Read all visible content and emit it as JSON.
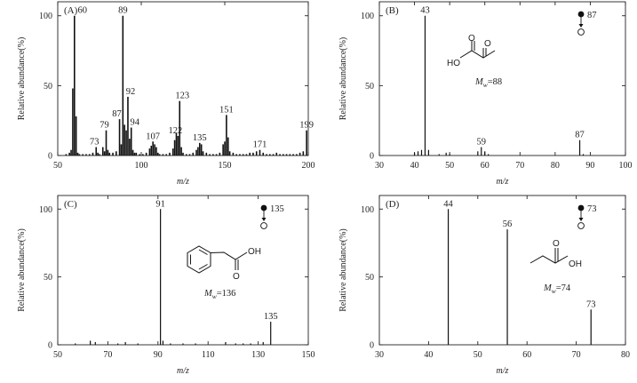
{
  "chart_data": [
    {
      "type": "bar",
      "panel": "(A)",
      "xlabel": "m/z",
      "ylabel": "Relative abundance(%)",
      "xlim": [
        50,
        200
      ],
      "ylim": [
        0,
        110
      ],
      "xticks": [
        50,
        100,
        150,
        200
      ],
      "yticks": [
        0,
        50,
        100
      ],
      "peaks": [
        {
          "x": 55,
          "y": 1
        },
        {
          "x": 57,
          "y": 2
        },
        {
          "x": 58,
          "y": 4
        },
        {
          "x": 59,
          "y": 48
        },
        {
          "x": 60,
          "y": 100,
          "label": "60"
        },
        {
          "x": 61,
          "y": 28
        },
        {
          "x": 62,
          "y": 2
        },
        {
          "x": 63,
          "y": 1
        },
        {
          "x": 65,
          "y": 1
        },
        {
          "x": 67,
          "y": 1
        },
        {
          "x": 69,
          "y": 1
        },
        {
          "x": 71,
          "y": 2
        },
        {
          "x": 73,
          "y": 6,
          "label": "73"
        },
        {
          "x": 74,
          "y": 2
        },
        {
          "x": 75,
          "y": 1
        },
        {
          "x": 77,
          "y": 6
        },
        {
          "x": 78,
          "y": 3
        },
        {
          "x": 79,
          "y": 18,
          "label": "79"
        },
        {
          "x": 80,
          "y": 4
        },
        {
          "x": 81,
          "y": 2
        },
        {
          "x": 83,
          "y": 2
        },
        {
          "x": 85,
          "y": 3
        },
        {
          "x": 87,
          "y": 26,
          "label": "87"
        },
        {
          "x": 88,
          "y": 8
        },
        {
          "x": 89,
          "y": 100,
          "label": "89"
        },
        {
          "x": 90,
          "y": 22
        },
        {
          "x": 91,
          "y": 18
        },
        {
          "x": 92,
          "y": 42,
          "label": "92"
        },
        {
          "x": 93,
          "y": 12
        },
        {
          "x": 94,
          "y": 20,
          "label": "94"
        },
        {
          "x": 95,
          "y": 4
        },
        {
          "x": 96,
          "y": 2
        },
        {
          "x": 97,
          "y": 2
        },
        {
          "x": 99,
          "y": 1
        },
        {
          "x": 101,
          "y": 1
        },
        {
          "x": 103,
          "y": 2
        },
        {
          "x": 105,
          "y": 5
        },
        {
          "x": 106,
          "y": 7
        },
        {
          "x": 107,
          "y": 10,
          "label": "107"
        },
        {
          "x": 108,
          "y": 8
        },
        {
          "x": 109,
          "y": 6
        },
        {
          "x": 110,
          "y": 2
        },
        {
          "x": 111,
          "y": 1
        },
        {
          "x": 113,
          "y": 1
        },
        {
          "x": 115,
          "y": 1
        },
        {
          "x": 117,
          "y": 2
        },
        {
          "x": 119,
          "y": 5
        },
        {
          "x": 120,
          "y": 11
        },
        {
          "x": 121,
          "y": 16
        },
        {
          "x": 122,
          "y": 14,
          "label": "122"
        },
        {
          "x": 123,
          "y": 39,
          "label": "123"
        },
        {
          "x": 124,
          "y": 6
        },
        {
          "x": 125,
          "y": 2
        },
        {
          "x": 127,
          "y": 1
        },
        {
          "x": 129,
          "y": 1
        },
        {
          "x": 131,
          "y": 2
        },
        {
          "x": 133,
          "y": 4
        },
        {
          "x": 134,
          "y": 6
        },
        {
          "x": 135,
          "y": 9,
          "label": "135"
        },
        {
          "x": 136,
          "y": 8
        },
        {
          "x": 137,
          "y": 3
        },
        {
          "x": 139,
          "y": 2
        },
        {
          "x": 141,
          "y": 1
        },
        {
          "x": 143,
          "y": 1
        },
        {
          "x": 145,
          "y": 1
        },
        {
          "x": 147,
          "y": 2
        },
        {
          "x": 149,
          "y": 8
        },
        {
          "x": 150,
          "y": 10
        },
        {
          "x": 151,
          "y": 29,
          "label": "151"
        },
        {
          "x": 152,
          "y": 13
        },
        {
          "x": 153,
          "y": 3
        },
        {
          "x": 155,
          "y": 2
        },
        {
          "x": 157,
          "y": 1
        },
        {
          "x": 159,
          "y": 1
        },
        {
          "x": 161,
          "y": 1
        },
        {
          "x": 163,
          "y": 1
        },
        {
          "x": 165,
          "y": 2
        },
        {
          "x": 167,
          "y": 2
        },
        {
          "x": 169,
          "y": 3
        },
        {
          "x": 171,
          "y": 4,
          "label": "171"
        },
        {
          "x": 173,
          "y": 2
        },
        {
          "x": 175,
          "y": 1
        },
        {
          "x": 177,
          "y": 1
        },
        {
          "x": 179,
          "y": 1
        },
        {
          "x": 181,
          "y": 2
        },
        {
          "x": 183,
          "y": 1
        },
        {
          "x": 185,
          "y": 1
        },
        {
          "x": 187,
          "y": 1
        },
        {
          "x": 189,
          "y": 1
        },
        {
          "x": 191,
          "y": 1
        },
        {
          "x": 193,
          "y": 1
        },
        {
          "x": 195,
          "y": 2
        },
        {
          "x": 197,
          "y": 3
        },
        {
          "x": 199,
          "y": 18,
          "label": "199"
        }
      ]
    },
    {
      "type": "bar",
      "panel": "(B)",
      "xlabel": "m/z",
      "ylabel": "Relative abundance(%)",
      "xlim": [
        30,
        100
      ],
      "ylim": [
        0,
        110
      ],
      "xticks": [
        30,
        40,
        50,
        60,
        70,
        80,
        90,
        100
      ],
      "yticks": [
        0,
        50,
        100
      ],
      "mw": "88",
      "molecular_ion": "87",
      "peaks": [
        {
          "x": 40,
          "y": 2
        },
        {
          "x": 41,
          "y": 3
        },
        {
          "x": 42,
          "y": 4
        },
        {
          "x": 43,
          "y": 100,
          "label": "43"
        },
        {
          "x": 44,
          "y": 4
        },
        {
          "x": 47,
          "y": 1
        },
        {
          "x": 49,
          "y": 2
        },
        {
          "x": 50,
          "y": 1
        },
        {
          "x": 58,
          "y": 3
        },
        {
          "x": 59,
          "y": 6,
          "label": "59"
        },
        {
          "x": 60,
          "y": 3
        },
        {
          "x": 61,
          "y": 1
        },
        {
          "x": 87,
          "y": 11,
          "label": "87"
        },
        {
          "x": 88,
          "y": 1
        }
      ]
    },
    {
      "type": "bar",
      "panel": "(C)",
      "xlabel": "m/z",
      "ylabel": "Relative abundance(%)",
      "xlim": [
        50,
        150
      ],
      "ylim": [
        0,
        110
      ],
      "xticks": [
        50,
        70,
        90,
        110,
        130,
        150
      ],
      "yticks": [
        0,
        50,
        100
      ],
      "mw": "136",
      "molecular_ion": "135",
      "peaks": [
        {
          "x": 57,
          "y": 1
        },
        {
          "x": 63,
          "y": 3
        },
        {
          "x": 65,
          "y": 2
        },
        {
          "x": 74,
          "y": 1
        },
        {
          "x": 77,
          "y": 2
        },
        {
          "x": 82,
          "y": 1
        },
        {
          "x": 91,
          "y": 100,
          "label": "91"
        },
        {
          "x": 92,
          "y": 3
        },
        {
          "x": 95,
          "y": 1
        },
        {
          "x": 100,
          "y": 1
        },
        {
          "x": 105,
          "y": 1
        },
        {
          "x": 117,
          "y": 2
        },
        {
          "x": 121,
          "y": 1
        },
        {
          "x": 124,
          "y": 1
        },
        {
          "x": 127,
          "y": 1
        },
        {
          "x": 132,
          "y": 2
        },
        {
          "x": 135,
          "y": 17,
          "label": "135"
        }
      ]
    },
    {
      "type": "bar",
      "panel": "(D)",
      "xlabel": "m/z",
      "ylabel": "Relative abundance(%)",
      "xlim": [
        30,
        80
      ],
      "ylim": [
        0,
        110
      ],
      "xticks": [
        30,
        40,
        50,
        60,
        70,
        80
      ],
      "yticks": [
        0,
        50,
        100
      ],
      "mw": "74",
      "molecular_ion": "73",
      "peaks": [
        {
          "x": 44,
          "y": 100,
          "label": "44"
        },
        {
          "x": 56,
          "y": 85,
          "label": "56"
        },
        {
          "x": 73,
          "y": 26,
          "label": "73"
        }
      ]
    }
  ]
}
